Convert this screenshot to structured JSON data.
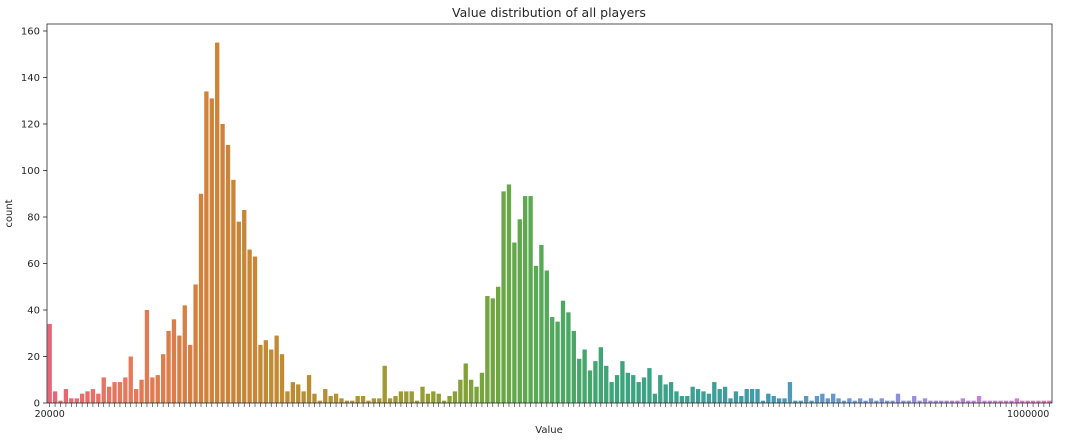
{
  "chart_data": {
    "type": "bar",
    "title": "Value distribution of all players",
    "xlabel": "Value",
    "ylabel": "count",
    "ylim": [
      0,
      163
    ],
    "yticks": [
      0,
      20,
      40,
      60,
      80,
      100,
      120,
      140,
      160
    ],
    "grid": false,
    "legend": "none",
    "palette": "husl",
    "xtick_first": "20000",
    "xtick_last": "1000000",
    "values": [
      34,
      5,
      1,
      6,
      2,
      2,
      4,
      5,
      6,
      4,
      11,
      7,
      9,
      9,
      11,
      20,
      6,
      10,
      40,
      11,
      12,
      21,
      31,
      36,
      29,
      42,
      25,
      51,
      90,
      134,
      131,
      155,
      120,
      111,
      96,
      78,
      83,
      66,
      63,
      25,
      27,
      23,
      29,
      21,
      5,
      9,
      8,
      5,
      12,
      4,
      1,
      6,
      3,
      4,
      2,
      1,
      1,
      3,
      3,
      1,
      2,
      2,
      16,
      2,
      3,
      5,
      5,
      5,
      1,
      7,
      4,
      5,
      4,
      1,
      3,
      5,
      10,
      17,
      10,
      7,
      13,
      46,
      45,
      50,
      91,
      94,
      69,
      79,
      89,
      89,
      59,
      68,
      57,
      37,
      35,
      44,
      39,
      31,
      19,
      23,
      14,
      18,
      24,
      16,
      9,
      12,
      18,
      13,
      12,
      9,
      11,
      15,
      4,
      12,
      8,
      9,
      5,
      3,
      3,
      7,
      6,
      5,
      4,
      9,
      6,
      7,
      2,
      5,
      3,
      6,
      6,
      6,
      1,
      4,
      3,
      2,
      2,
      9,
      1,
      1,
      3,
      1,
      3,
      4,
      2,
      4,
      2,
      1,
      2,
      1,
      2,
      1,
      2,
      1,
      2,
      1,
      1,
      4,
      1,
      1,
      3,
      1,
      2,
      1,
      1,
      1,
      1,
      1,
      1,
      2,
      1,
      1,
      3,
      1,
      1,
      1,
      1,
      1,
      1,
      2,
      1,
      1,
      1,
      1,
      1,
      1
    ]
  }
}
